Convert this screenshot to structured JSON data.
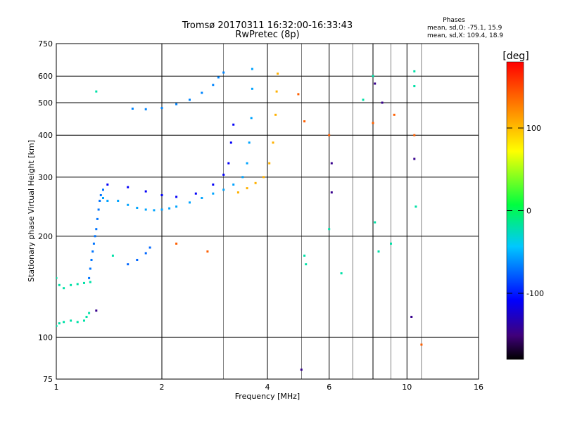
{
  "chart_data": {
    "type": "scatter",
    "title": "Tromsø 20170311 16:32:00-16:33:43",
    "subtitle": "RwPretec (8p)",
    "stats": {
      "heading": "Phases",
      "line_o": "mean, sd,O: -75.1, 15.9",
      "line_x": "mean, sd,X: 109.4, 18.9"
    },
    "xlabel": "Frequency [MHz]",
    "ylabel": "Stationary phase Virtual Height [km]",
    "x_scale": "log",
    "y_scale": "log",
    "xlim": [
      1,
      16
    ],
    "ylim": [
      75,
      750
    ],
    "x_ticks": [
      1,
      2,
      4,
      6,
      10,
      16
    ],
    "x_tick_labels": [
      "1",
      "2",
      "4",
      "6",
      "10",
      "16"
    ],
    "x_grid": [
      2,
      4,
      6,
      8,
      10
    ],
    "x_minor_grid": [
      3,
      5,
      7,
      9,
      11
    ],
    "y_ticks": [
      75,
      100,
      200,
      300,
      400,
      500,
      600,
      750
    ],
    "y_tick_labels": [
      "75",
      "100",
      "200",
      "300",
      "400",
      "500",
      "600",
      "750"
    ],
    "y_grid": [
      100,
      200,
      300,
      400,
      500,
      600
    ],
    "grid": true,
    "colorbar": {
      "label": "[deg]",
      "range": [
        -180,
        180
      ],
      "ticks": [
        100,
        0,
        -100
      ],
      "tick_labels": [
        "100",
        "0",
        "-100"
      ],
      "placement": "right"
    },
    "series": [
      {
        "values": [
          [
            1.0,
            108
          ],
          [
            1.02,
            110
          ],
          [
            1.05,
            111
          ],
          [
            1.1,
            112
          ],
          [
            1.15,
            111
          ],
          [
            1.2,
            112
          ],
          [
            1.22,
            115
          ],
          [
            1.24,
            118
          ],
          [
            1.0,
            150
          ],
          [
            1.02,
            143
          ],
          [
            1.05,
            140
          ],
          [
            1.1,
            143
          ],
          [
            1.15,
            144
          ],
          [
            1.2,
            145
          ],
          [
            1.25,
            146
          ]
        ],
        "phase": -20
      },
      {
        "values": [
          [
            1.24,
            150
          ],
          [
            1.25,
            160
          ],
          [
            1.26,
            170
          ],
          [
            1.27,
            180
          ],
          [
            1.28,
            190
          ],
          [
            1.29,
            200
          ],
          [
            1.3,
            210
          ],
          [
            1.31,
            225
          ],
          [
            1.32,
            240
          ],
          [
            1.33,
            255
          ],
          [
            1.34,
            265
          ],
          [
            1.36,
            275
          ]
        ],
        "phase": -70
      },
      {
        "values": [
          [
            1.36,
            260
          ],
          [
            1.4,
            255
          ],
          [
            1.5,
            255
          ],
          [
            1.6,
            248
          ],
          [
            1.7,
            243
          ],
          [
            1.8,
            240
          ],
          [
            1.9,
            239
          ],
          [
            2.0,
            240
          ],
          [
            2.1,
            242
          ],
          [
            2.2,
            245
          ],
          [
            2.4,
            252
          ],
          [
            2.6,
            260
          ],
          [
            2.8,
            268
          ],
          [
            3.0,
            275
          ],
          [
            3.2,
            285
          ],
          [
            3.4,
            300
          ],
          [
            3.5,
            330
          ],
          [
            3.55,
            380
          ],
          [
            3.6,
            450
          ],
          [
            3.62,
            550
          ],
          [
            3.62,
            630
          ]
        ],
        "phase": -55
      },
      {
        "values": [
          [
            1.4,
            285
          ],
          [
            1.6,
            280
          ],
          [
            1.8,
            272
          ],
          [
            2.0,
            265
          ],
          [
            2.2,
            262
          ],
          [
            2.5,
            268
          ],
          [
            2.8,
            285
          ],
          [
            3.0,
            305
          ],
          [
            3.1,
            330
          ],
          [
            3.15,
            380
          ],
          [
            3.2,
            430
          ]
        ],
        "phase": -110
      },
      {
        "values": [
          [
            1.65,
            480
          ],
          [
            1.8,
            478
          ],
          [
            2.0,
            482
          ],
          [
            2.2,
            495
          ],
          [
            2.4,
            510
          ],
          [
            2.6,
            535
          ],
          [
            2.8,
            565
          ],
          [
            2.9,
            595
          ],
          [
            3.0,
            615
          ]
        ],
        "phase": -65
      },
      {
        "values": [
          [
            3.3,
            270
          ],
          [
            3.5,
            278
          ],
          [
            3.7,
            288
          ],
          [
            3.9,
            300
          ],
          [
            4.05,
            330
          ],
          [
            4.15,
            380
          ],
          [
            4.22,
            460
          ],
          [
            4.25,
            540
          ],
          [
            4.28,
            610
          ]
        ],
        "phase": 105
      },
      {
        "values": [
          [
            1.6,
            165
          ],
          [
            1.7,
            170
          ],
          [
            1.8,
            178
          ],
          [
            1.85,
            185
          ]
        ],
        "phase": -75
      },
      {
        "values": [
          [
            5.1,
            175
          ],
          [
            5.15,
            165
          ],
          [
            6.0,
            210
          ],
          [
            6.5,
            155
          ],
          [
            7.5,
            510
          ],
          [
            8.0,
            600
          ],
          [
            8.1,
            220
          ],
          [
            8.3,
            180
          ],
          [
            9.0,
            190
          ],
          [
            10.5,
            620
          ],
          [
            10.5,
            560
          ],
          [
            10.6,
            245
          ],
          [
            1.3,
            540
          ],
          [
            1.45,
            175
          ]
        ],
        "phase": -20
      },
      {
        "values": [
          [
            4.9,
            530
          ],
          [
            5.1,
            440
          ],
          [
            6.0,
            400
          ],
          [
            8.0,
            435
          ],
          [
            9.2,
            460
          ],
          [
            10.5,
            400
          ],
          [
            11.0,
            95
          ],
          [
            2.2,
            190
          ],
          [
            2.7,
            180
          ]
        ],
        "phase": 140
      },
      {
        "values": [
          [
            5.0,
            80
          ],
          [
            6.1,
            270
          ],
          [
            6.1,
            330
          ],
          [
            10.3,
            115
          ],
          [
            10.5,
            340
          ],
          [
            8.1,
            570
          ],
          [
            8.5,
            500
          ],
          [
            1.3,
            120
          ]
        ],
        "phase": -145
      }
    ]
  }
}
